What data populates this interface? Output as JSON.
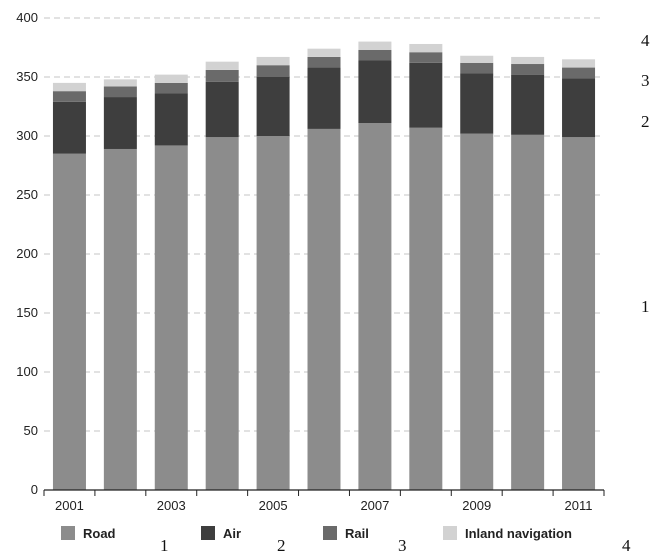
{
  "chart_data": {
    "type": "bar",
    "stacked": true,
    "categories": [
      "2001",
      "2002",
      "2003",
      "2004",
      "2005",
      "2006",
      "2007",
      "2008",
      "2009",
      "2010",
      "2011"
    ],
    "x_tick_labels": [
      "2001",
      "",
      "2003",
      "",
      "2005",
      "",
      "2007",
      "",
      "2009",
      "",
      "2011"
    ],
    "ylim": [
      0,
      400
    ],
    "y_ticks": [
      0,
      50,
      100,
      150,
      200,
      250,
      300,
      350,
      400
    ],
    "grid": "horizontal dashed",
    "legend_position": "bottom",
    "series": [
      {
        "name": "Road",
        "color": "#8c8c8c",
        "values": [
          285,
          289,
          292,
          299,
          300,
          306,
          311,
          307,
          302,
          301,
          299
        ]
      },
      {
        "name": "Air",
        "color": "#3e3e3e",
        "values": [
          44,
          44,
          44,
          47,
          50,
          52,
          53,
          55,
          51,
          51,
          50
        ]
      },
      {
        "name": "Rail",
        "color": "#6a6a6a",
        "values": [
          9,
          9,
          9,
          10,
          10,
          9,
          9,
          9,
          9,
          9,
          9
        ]
      },
      {
        "name": "Inland navigation",
        "color": "#d2d2d2",
        "values": [
          7,
          6,
          7,
          7,
          7,
          7,
          7,
          7,
          6,
          6,
          7
        ]
      }
    ]
  },
  "side_notes": [
    "4",
    "3",
    "2",
    "1"
  ],
  "legend_notes": [
    "1",
    "2",
    "3",
    "4"
  ]
}
